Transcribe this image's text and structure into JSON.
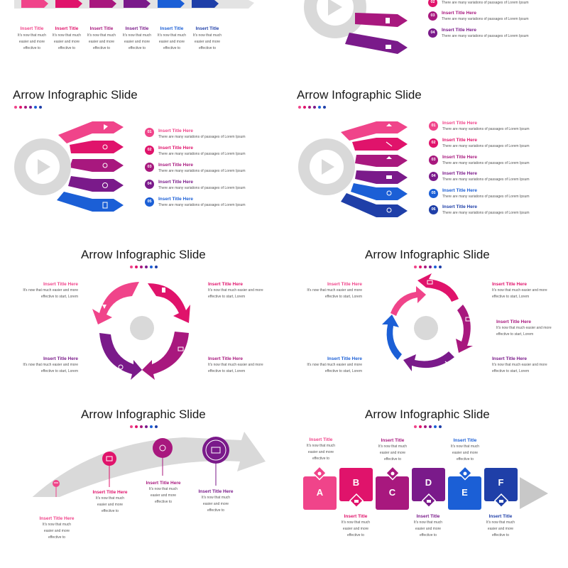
{
  "slide_title": "Arrow Infographic Slide",
  "item_title": "Insert Title Here",
  "item_title_short": "Insert Title",
  "item_text": "There are many variations of passages of Lorem Ipsum",
  "arrow_text_l1": "It's now that much easier and more",
  "arrow_text_l2": "effective to start, Lorem",
  "short_l1": "It's now that much",
  "short_l2": "easier and more",
  "short_l3": "effective to",
  "numbers": [
    "01",
    "02",
    "03",
    "04",
    "05",
    "06"
  ],
  "letters": [
    "A",
    "B",
    "C",
    "D",
    "E",
    "F"
  ],
  "colors": {
    "pink": "#f0448a",
    "magenta": "#e0136b",
    "plum": "#a8187e",
    "purple": "#7a1a8a",
    "blue": "#1b5fd6",
    "navy": "#1f3fa8",
    "gray": "#d4d4d4"
  }
}
